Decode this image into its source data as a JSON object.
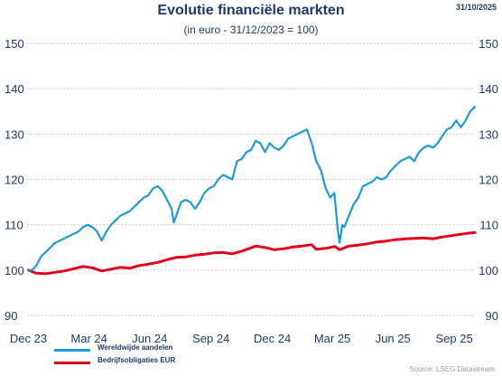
{
  "header": {
    "title": "Evolutie financiële markten",
    "subtitle": "(in euro - 31/12/2023 = 100)",
    "date": "31/10/2025"
  },
  "footer": {
    "source": "Source: LSEG Datastream"
  },
  "colors": {
    "equities": "#1e9bd7",
    "bonds": "#e3001b",
    "text": "#1b3a6b",
    "grid": "#c9c9c9"
  },
  "chart_data": {
    "type": "line",
    "title": "Evolutie financiële markten",
    "subtitle": "(in euro - 31/12/2023 = 100)",
    "xlim": [
      "2023-12-29",
      "2025-10-31"
    ],
    "ylim": [
      90,
      150
    ],
    "yticks": [
      90,
      100,
      110,
      120,
      130,
      140,
      150
    ],
    "xtick_labels": [
      {
        "date": "2023-12-31",
        "label": "Dec 23"
      },
      {
        "date": "2024-03-31",
        "label": "Mar 24"
      },
      {
        "date": "2024-06-30",
        "label": "Jun 24"
      },
      {
        "date": "2024-09-30",
        "label": "Sep 24"
      },
      {
        "date": "2024-12-31",
        "label": "Dec 24"
      },
      {
        "date": "2025-03-31",
        "label": "Mar 25"
      },
      {
        "date": "2025-06-30",
        "label": "Jun 25"
      },
      {
        "date": "2025-09-30",
        "label": "Sep 25"
      }
    ],
    "grid": true,
    "legend_position": "bottom-left",
    "series": [
      {
        "name": "Wereldwijde aandelen",
        "color": "#1e9bd7",
        "points": [
          [
            "2023-12-31",
            100
          ],
          [
            "2024-01-05",
            100
          ],
          [
            "2024-01-12",
            101
          ],
          [
            "2024-01-19",
            103
          ],
          [
            "2024-01-26",
            104
          ],
          [
            "2024-02-02",
            105
          ],
          [
            "2024-02-09",
            106
          ],
          [
            "2024-02-16",
            106.5
          ],
          [
            "2024-02-23",
            107
          ],
          [
            "2024-03-01",
            107.5
          ],
          [
            "2024-03-08",
            108
          ],
          [
            "2024-03-15",
            108.5
          ],
          [
            "2024-03-22",
            109.5
          ],
          [
            "2024-03-29",
            110
          ],
          [
            "2024-04-05",
            109.5
          ],
          [
            "2024-04-12",
            108.5
          ],
          [
            "2024-04-19",
            106.5
          ],
          [
            "2024-04-26",
            108.5
          ],
          [
            "2024-05-03",
            110
          ],
          [
            "2024-05-10",
            111
          ],
          [
            "2024-05-17",
            112
          ],
          [
            "2024-05-24",
            112.5
          ],
          [
            "2024-05-31",
            113
          ],
          [
            "2024-06-07",
            114
          ],
          [
            "2024-06-14",
            115
          ],
          [
            "2024-06-21",
            116
          ],
          [
            "2024-06-28",
            116.5
          ],
          [
            "2024-07-05",
            118
          ],
          [
            "2024-07-12",
            118.5
          ],
          [
            "2024-07-19",
            117.5
          ],
          [
            "2024-07-26",
            115.5
          ],
          [
            "2024-08-02",
            113.5
          ],
          [
            "2024-08-05",
            110.5
          ],
          [
            "2024-08-09",
            112
          ],
          [
            "2024-08-16",
            115
          ],
          [
            "2024-08-23",
            115.5
          ],
          [
            "2024-08-30",
            115
          ],
          [
            "2024-09-06",
            113.5
          ],
          [
            "2024-09-13",
            115
          ],
          [
            "2024-09-20",
            117
          ],
          [
            "2024-09-27",
            118
          ],
          [
            "2024-10-04",
            118.5
          ],
          [
            "2024-10-11",
            120
          ],
          [
            "2024-10-18",
            121
          ],
          [
            "2024-10-25",
            120.5
          ],
          [
            "2024-11-01",
            120
          ],
          [
            "2024-11-08",
            124
          ],
          [
            "2024-11-15",
            124.5
          ],
          [
            "2024-11-22",
            126
          ],
          [
            "2024-11-29",
            126.5
          ],
          [
            "2024-12-06",
            128.5
          ],
          [
            "2024-12-13",
            128
          ],
          [
            "2024-12-20",
            126
          ],
          [
            "2024-12-27",
            128
          ],
          [
            "2025-01-03",
            127
          ],
          [
            "2025-01-10",
            126.5
          ],
          [
            "2025-01-17",
            127.5
          ],
          [
            "2025-01-24",
            129
          ],
          [
            "2025-01-31",
            129.5
          ],
          [
            "2025-02-07",
            130
          ],
          [
            "2025-02-14",
            130.5
          ],
          [
            "2025-02-21",
            131
          ],
          [
            "2025-02-28",
            128
          ],
          [
            "2025-03-07",
            124
          ],
          [
            "2025-03-14",
            122
          ],
          [
            "2025-03-21",
            118
          ],
          [
            "2025-03-28",
            116
          ],
          [
            "2025-04-03",
            117
          ],
          [
            "2025-04-08",
            109
          ],
          [
            "2025-04-11",
            106
          ],
          [
            "2025-04-15",
            110
          ],
          [
            "2025-04-18",
            109.5
          ],
          [
            "2025-04-25",
            112
          ],
          [
            "2025-05-02",
            114.5
          ],
          [
            "2025-05-09",
            116
          ],
          [
            "2025-05-16",
            118.5
          ],
          [
            "2025-05-23",
            119
          ],
          [
            "2025-05-30",
            119.5
          ],
          [
            "2025-06-06",
            120.5
          ],
          [
            "2025-06-13",
            120
          ],
          [
            "2025-06-20",
            120.5
          ],
          [
            "2025-06-27",
            122
          ],
          [
            "2025-07-04",
            123
          ],
          [
            "2025-07-11",
            124
          ],
          [
            "2025-07-18",
            124.5
          ],
          [
            "2025-07-25",
            125
          ],
          [
            "2025-08-01",
            124
          ],
          [
            "2025-08-08",
            126
          ],
          [
            "2025-08-15",
            127
          ],
          [
            "2025-08-22",
            127.5
          ],
          [
            "2025-08-29",
            127
          ],
          [
            "2025-09-05",
            128
          ],
          [
            "2025-09-12",
            129.5
          ],
          [
            "2025-09-19",
            131
          ],
          [
            "2025-09-26",
            131.5
          ],
          [
            "2025-10-03",
            133
          ],
          [
            "2025-10-10",
            131.5
          ],
          [
            "2025-10-17",
            133
          ],
          [
            "2025-10-24",
            135
          ],
          [
            "2025-10-31",
            136
          ]
        ]
      },
      {
        "name": "Bedrijfsobligaties EUR",
        "color": "#e3001b",
        "points": [
          [
            "2023-12-31",
            100
          ],
          [
            "2024-01-12",
            99.3
          ],
          [
            "2024-01-26",
            99.2
          ],
          [
            "2024-02-09",
            99.5
          ],
          [
            "2024-02-23",
            99.8
          ],
          [
            "2024-03-08",
            100.3
          ],
          [
            "2024-03-22",
            100.8
          ],
          [
            "2024-04-05",
            100.5
          ],
          [
            "2024-04-19",
            99.8
          ],
          [
            "2024-05-03",
            100.2
          ],
          [
            "2024-05-17",
            100.6
          ],
          [
            "2024-05-31",
            100.4
          ],
          [
            "2024-06-14",
            101
          ],
          [
            "2024-06-28",
            101.3
          ],
          [
            "2024-07-12",
            101.7
          ],
          [
            "2024-07-26",
            102.3
          ],
          [
            "2024-08-09",
            102.8
          ],
          [
            "2024-08-23",
            102.9
          ],
          [
            "2024-09-06",
            103.3
          ],
          [
            "2024-09-20",
            103.5
          ],
          [
            "2024-10-04",
            103.8
          ],
          [
            "2024-10-18",
            103.9
          ],
          [
            "2024-11-01",
            103.6
          ],
          [
            "2024-11-15",
            104.2
          ],
          [
            "2024-11-29",
            104.9
          ],
          [
            "2024-12-06",
            105.3
          ],
          [
            "2024-12-20",
            105
          ],
          [
            "2025-01-03",
            104.5
          ],
          [
            "2025-01-17",
            104.7
          ],
          [
            "2025-01-31",
            105.1
          ],
          [
            "2025-02-14",
            105.3
          ],
          [
            "2025-02-28",
            105.6
          ],
          [
            "2025-03-07",
            104.6
          ],
          [
            "2025-03-21",
            104.8
          ],
          [
            "2025-04-04",
            105.2
          ],
          [
            "2025-04-11",
            104.5
          ],
          [
            "2025-04-25",
            105.3
          ],
          [
            "2025-05-09",
            105.5
          ],
          [
            "2025-05-23",
            105.8
          ],
          [
            "2025-06-06",
            106.2
          ],
          [
            "2025-06-20",
            106.4
          ],
          [
            "2025-07-04",
            106.7
          ],
          [
            "2025-07-18",
            106.9
          ],
          [
            "2025-08-01",
            107
          ],
          [
            "2025-08-15",
            107.1
          ],
          [
            "2025-08-29",
            106.9
          ],
          [
            "2025-09-12",
            107.3
          ],
          [
            "2025-09-26",
            107.6
          ],
          [
            "2025-10-10",
            107.9
          ],
          [
            "2025-10-24",
            108.2
          ],
          [
            "2025-10-31",
            108.3
          ]
        ]
      }
    ]
  }
}
